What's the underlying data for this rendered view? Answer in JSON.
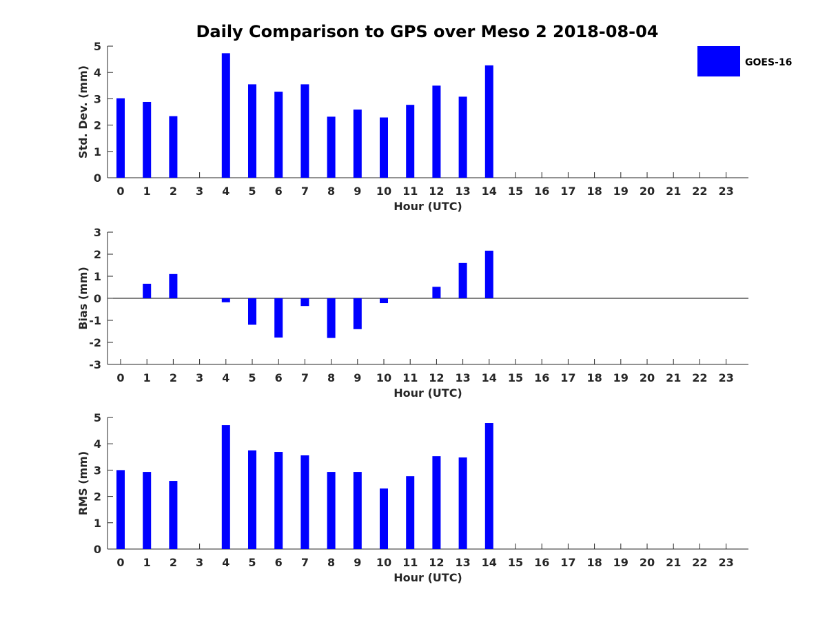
{
  "chart_data": {
    "title": "Daily Comparison to GPS over Meso 2 2018-08-04",
    "legend": {
      "label": "GOES-16",
      "color": "#0000ff",
      "placement": "top-right"
    },
    "bar_color": "#0000ff",
    "panels": [
      {
        "type": "bar",
        "ylabel": "Std. Dev. (mm)",
        "xlabel": "Hour (UTC)",
        "ylim": [
          0,
          5
        ],
        "yticks": [
          "0",
          "1",
          "2",
          "3",
          "4",
          "5"
        ],
        "categories": [
          "0",
          "1",
          "2",
          "3",
          "4",
          "5",
          "6",
          "7",
          "8",
          "9",
          "10",
          "11",
          "12",
          "13",
          "14",
          "15",
          "16",
          "17",
          "18",
          "19",
          "20",
          "21",
          "22",
          "23"
        ],
        "values": [
          3.02,
          2.88,
          2.34,
          null,
          4.73,
          3.55,
          3.27,
          3.55,
          2.32,
          2.59,
          2.29,
          2.77,
          3.5,
          3.08,
          4.27,
          null,
          null,
          null,
          null,
          null,
          null,
          null,
          null,
          null
        ]
      },
      {
        "type": "bar",
        "ylabel": "Bias (mm)",
        "xlabel": "Hour (UTC)",
        "ylim": [
          -3,
          3
        ],
        "yticks": [
          "-3",
          "-2",
          "-1",
          "0",
          "1",
          "2",
          "3"
        ],
        "categories": [
          "0",
          "1",
          "2",
          "3",
          "4",
          "5",
          "6",
          "7",
          "8",
          "9",
          "10",
          "11",
          "12",
          "13",
          "14",
          "15",
          "16",
          "17",
          "18",
          "19",
          "20",
          "21",
          "22",
          "23"
        ],
        "values": [
          0.0,
          0.66,
          1.1,
          null,
          -0.18,
          -1.2,
          -1.78,
          -0.35,
          -1.8,
          -1.4,
          -0.22,
          0.0,
          0.52,
          1.6,
          2.16,
          null,
          null,
          null,
          null,
          null,
          null,
          null,
          null,
          null
        ]
      },
      {
        "type": "bar",
        "ylabel": "RMS (mm)",
        "xlabel": "Hour (UTC)",
        "ylim": [
          0,
          5
        ],
        "yticks": [
          "0",
          "1",
          "2",
          "3",
          "4",
          "5"
        ],
        "categories": [
          "0",
          "1",
          "2",
          "3",
          "4",
          "5",
          "6",
          "7",
          "8",
          "9",
          "10",
          "11",
          "12",
          "13",
          "14",
          "15",
          "16",
          "17",
          "18",
          "19",
          "20",
          "21",
          "22",
          "23"
        ],
        "values": [
          3.0,
          2.93,
          2.59,
          null,
          4.71,
          3.75,
          3.69,
          3.56,
          2.93,
          2.93,
          2.3,
          2.77,
          3.53,
          3.48,
          4.79,
          null,
          null,
          null,
          null,
          null,
          null,
          null,
          null,
          null
        ]
      }
    ]
  }
}
